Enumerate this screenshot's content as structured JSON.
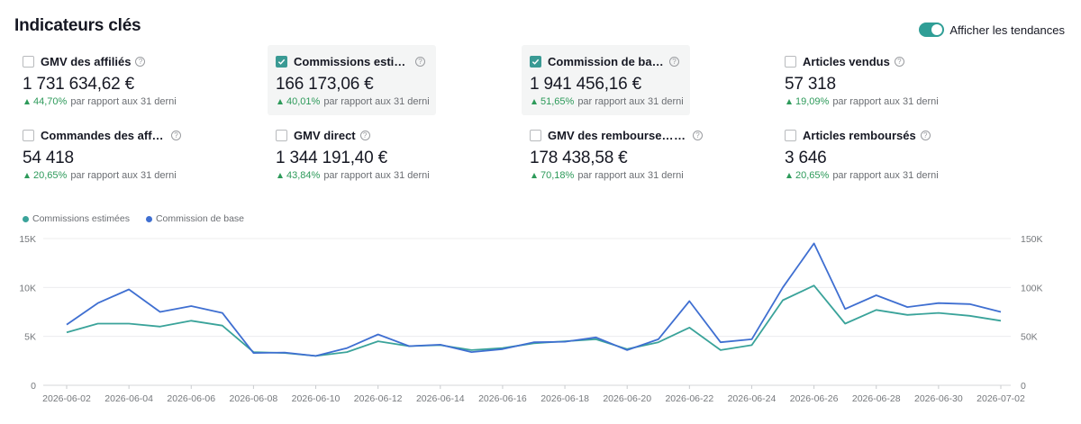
{
  "header": {
    "title": "Indicateurs clés",
    "trend_toggle_label": "Afficher les tendances"
  },
  "colors": {
    "accent": "#2f9e96",
    "commissions_estimees": "#3aa39a",
    "commission_de_base": "#3f6fd1",
    "positive": "#2d9a5a"
  },
  "metrics": [
    {
      "label": "GMV des affiliés",
      "value": "1 731 634,62 €",
      "delta": "44,70%",
      "comparison": "par rapport aux 31 derni",
      "checked": false
    },
    {
      "label": "Commissions estimées",
      "value": "166 173,06 €",
      "delta": "40,01%",
      "comparison": "par rapport aux 31 derni",
      "checked": true
    },
    {
      "label": "Commission de base",
      "value": "1 941 456,16 €",
      "delta": "51,65%",
      "comparison": "par rapport aux 31 derni",
      "checked": true
    },
    {
      "label": "Articles vendus",
      "value": "57 318",
      "delta": "19,09%",
      "comparison": "par rapport aux 31 derni",
      "checked": false
    },
    {
      "label": "Commandes des affiliés",
      "value": "54 418",
      "delta": "20,65%",
      "comparison": "par rapport aux 31 derni",
      "checked": false
    },
    {
      "label": "GMV direct",
      "value": "1 344 191,40 €",
      "delta": "43,84%",
      "comparison": "par rapport aux 31 derni",
      "checked": false
    },
    {
      "label": "GMV des rembourseme",
      "value": "178 438,58 €",
      "delta": "70,18%",
      "comparison": "par rapport aux 31 derni",
      "checked": false
    },
    {
      "label": "Articles remboursés",
      "value": "3 646",
      "delta": "20,65%",
      "comparison": "par rapport aux 31 derni",
      "checked": false
    }
  ],
  "chart_data": {
    "type": "line",
    "x": [
      "2026-06-02",
      "2026-06-03",
      "2026-06-04",
      "2026-06-05",
      "2026-06-06",
      "2026-06-07",
      "2026-06-08",
      "2026-06-09",
      "2026-06-10",
      "2026-06-11",
      "2026-06-12",
      "2026-06-13",
      "2026-06-14",
      "2026-06-15",
      "2026-06-16",
      "2026-06-17",
      "2026-06-18",
      "2026-06-19",
      "2026-06-20",
      "2026-06-21",
      "2026-06-22",
      "2026-06-23",
      "2026-06-24",
      "2026-06-25",
      "2026-06-26",
      "2026-06-27",
      "2026-06-28",
      "2026-06-29",
      "2026-06-30",
      "2026-07-01",
      "2026-07-02"
    ],
    "x_tick_labels": [
      "2026-06-02",
      "2026-06-04",
      "2026-06-06",
      "2026-06-08",
      "2026-06-10",
      "2026-06-12",
      "2026-06-14",
      "2026-06-16",
      "2026-06-18",
      "2026-06-20",
      "2026-06-22",
      "2026-06-24",
      "2026-06-26",
      "2026-06-28",
      "2026-06-30",
      "2026-07-02"
    ],
    "series": [
      {
        "name": "Commissions estimées",
        "axis": "left",
        "color": "#3aa39a",
        "values": [
          5400,
          6300,
          6300,
          6000,
          6600,
          6100,
          3400,
          3300,
          3000,
          3400,
          4500,
          4000,
          4100,
          3600,
          3800,
          4300,
          4500,
          4700,
          3700,
          4400,
          5900,
          3600,
          4100,
          8700,
          10200,
          6300,
          7700,
          7200,
          7400,
          7100,
          6600
        ]
      },
      {
        "name": "Commission de base",
        "axis": "right",
        "color": "#3f6fd1",
        "values": [
          62000,
          84000,
          98000,
          75000,
          81000,
          74000,
          33000,
          33500,
          30000,
          38000,
          52000,
          40000,
          41500,
          34000,
          37000,
          44000,
          44500,
          49000,
          36000,
          47000,
          86000,
          44000,
          47000,
          100000,
          145000,
          78000,
          92000,
          80000,
          84000,
          83000,
          75000
        ]
      }
    ],
    "y_left": {
      "ticks": [
        "0",
        "5K",
        "10K",
        "15K"
      ],
      "ylim": [
        0,
        15000
      ]
    },
    "y_right": {
      "ticks": [
        "0",
        "50K",
        "100K",
        "150K"
      ],
      "ylim": [
        0,
        150000
      ]
    },
    "grid": true,
    "legend": "top-left"
  }
}
